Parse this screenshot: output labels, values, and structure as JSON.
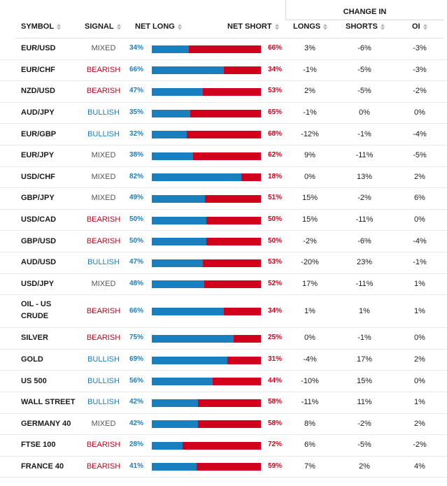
{
  "change_in_label": "CHANGE IN",
  "headers": {
    "symbol": "SYMBOL",
    "signal": "SIGNAL",
    "net_long": "NET LONG",
    "net_short": "NET SHORT",
    "longs": "LONGS",
    "shorts": "SHORTS",
    "oi": "OI"
  },
  "colors": {
    "long": "#1a7fbf",
    "short": "#d1001c",
    "mixed": "#555555"
  },
  "rows": [
    {
      "symbol": "EUR/USD",
      "signal": "MIXED",
      "net_long": "34%",
      "net_short": "66%",
      "long_value": 34,
      "longs": "3%",
      "shorts": "-6%",
      "oi": "-3%"
    },
    {
      "symbol": "EUR/CHF",
      "signal": "BEARISH",
      "net_long": "66%",
      "net_short": "34%",
      "long_value": 66,
      "longs": "-1%",
      "shorts": "-5%",
      "oi": "-3%"
    },
    {
      "symbol": "NZD/USD",
      "signal": "BEARISH",
      "net_long": "47%",
      "net_short": "53%",
      "long_value": 47,
      "longs": "2%",
      "shorts": "-5%",
      "oi": "-2%"
    },
    {
      "symbol": "AUD/JPY",
      "signal": "BULLISH",
      "net_long": "35%",
      "net_short": "65%",
      "long_value": 35,
      "longs": "-1%",
      "shorts": "0%",
      "oi": "0%"
    },
    {
      "symbol": "EUR/GBP",
      "signal": "BULLISH",
      "net_long": "32%",
      "net_short": "68%",
      "long_value": 32,
      "longs": "-12%",
      "shorts": "-1%",
      "oi": "-4%"
    },
    {
      "symbol": "EUR/JPY",
      "signal": "MIXED",
      "net_long": "38%",
      "net_short": "62%",
      "long_value": 38,
      "longs": "9%",
      "shorts": "-11%",
      "oi": "-5%"
    },
    {
      "symbol": "USD/CHF",
      "signal": "MIXED",
      "net_long": "82%",
      "net_short": "18%",
      "long_value": 82,
      "longs": "0%",
      "shorts": "13%",
      "oi": "2%"
    },
    {
      "symbol": "GBP/JPY",
      "signal": "MIXED",
      "net_long": "49%",
      "net_short": "51%",
      "long_value": 49,
      "longs": "15%",
      "shorts": "-2%",
      "oi": "6%"
    },
    {
      "symbol": "USD/CAD",
      "signal": "BEARISH",
      "net_long": "50%",
      "net_short": "50%",
      "long_value": 50,
      "longs": "15%",
      "shorts": "-11%",
      "oi": "0%"
    },
    {
      "symbol": "GBP/USD",
      "signal": "BEARISH",
      "net_long": "50%",
      "net_short": "50%",
      "long_value": 50,
      "longs": "-2%",
      "shorts": "-6%",
      "oi": "-4%"
    },
    {
      "symbol": "AUD/USD",
      "signal": "BULLISH",
      "net_long": "47%",
      "net_short": "53%",
      "long_value": 47,
      "longs": "-20%",
      "shorts": "23%",
      "oi": "-1%"
    },
    {
      "symbol": "USD/JPY",
      "signal": "MIXED",
      "net_long": "48%",
      "net_short": "52%",
      "long_value": 48,
      "longs": "17%",
      "shorts": "-11%",
      "oi": "1%"
    },
    {
      "symbol": "OIL - US CRUDE",
      "signal": "BEARISH",
      "net_long": "66%",
      "net_short": "34%",
      "long_value": 66,
      "longs": "1%",
      "shorts": "1%",
      "oi": "1%"
    },
    {
      "symbol": "SILVER",
      "signal": "BEARISH",
      "net_long": "75%",
      "net_short": "25%",
      "long_value": 75,
      "longs": "0%",
      "shorts": "-1%",
      "oi": "0%"
    },
    {
      "symbol": "GOLD",
      "signal": "BULLISH",
      "net_long": "69%",
      "net_short": "31%",
      "long_value": 69,
      "longs": "-4%",
      "shorts": "17%",
      "oi": "2%"
    },
    {
      "symbol": "US 500",
      "signal": "BULLISH",
      "net_long": "56%",
      "net_short": "44%",
      "long_value": 56,
      "longs": "-10%",
      "shorts": "15%",
      "oi": "0%"
    },
    {
      "symbol": "WALL STREET",
      "signal": "BULLISH",
      "net_long": "42%",
      "net_short": "58%",
      "long_value": 42,
      "longs": "-11%",
      "shorts": "11%",
      "oi": "1%"
    },
    {
      "symbol": "GERMANY 40",
      "signal": "MIXED",
      "net_long": "42%",
      "net_short": "58%",
      "long_value": 42,
      "longs": "8%",
      "shorts": "-2%",
      "oi": "2%"
    },
    {
      "symbol": "FTSE 100",
      "signal": "BEARISH",
      "net_long": "28%",
      "net_short": "72%",
      "long_value": 28,
      "longs": "6%",
      "shorts": "-5%",
      "oi": "-2%"
    },
    {
      "symbol": "FRANCE 40",
      "signal": "BEARISH",
      "net_long": "41%",
      "net_short": "59%",
      "long_value": 41,
      "longs": "7%",
      "shorts": "2%",
      "oi": "4%"
    }
  ]
}
